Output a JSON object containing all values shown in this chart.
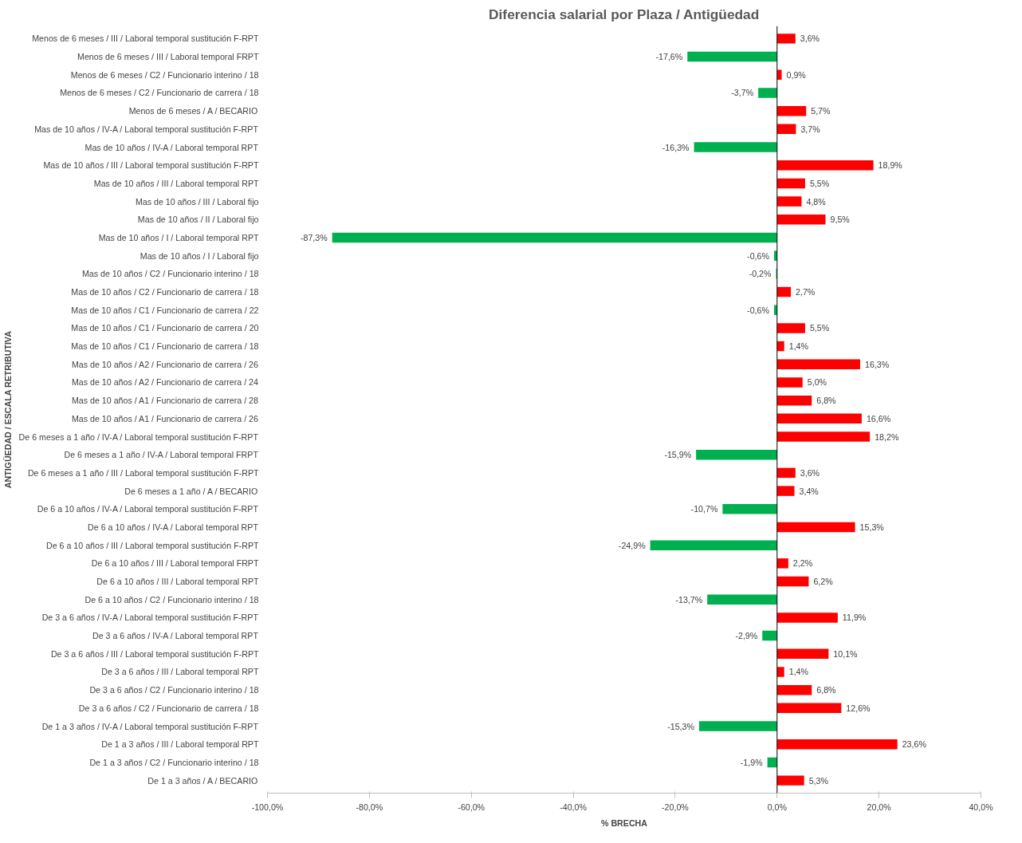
{
  "chart_data": {
    "type": "bar",
    "title": "Diferencia salarial por Plaza / Antigüedad",
    "xlabel": "% BRECHA",
    "ylabel": "ANTIGÜEDAD / ESCALA RETRIBUTIVA",
    "categories": [
      "Menos de 6 meses / III / Laboral temporal sustitución F-RPT",
      "Menos de 6 meses / III / Laboral temporal FRPT",
      "Menos de 6 meses / C2 / Funcionario interino / 18",
      "Menos de 6 meses / C2 / Funcionario de carrera / 18",
      "Menos de 6 meses / A / BECARIO",
      "Mas de 10 años / IV-A / Laboral temporal sustitución F-RPT",
      "Mas de 10 años / IV-A / Laboral temporal RPT",
      "Mas de 10 años / III / Laboral temporal sustitución F-RPT",
      "Mas de 10 años / III / Laboral temporal RPT",
      "Mas de 10 años / III / Laboral fijo",
      "Mas de 10 años / II / Laboral fijo",
      "Mas de 10 años / I / Laboral temporal RPT",
      "Mas de 10 años / I / Laboral fijo",
      "Mas de 10 años / C2 / Funcionario interino / 18",
      "Mas de 10 años / C2 / Funcionario de carrera / 18",
      "Mas de 10 años / C1 / Funcionario de carrera / 22",
      "Mas de 10 años / C1 / Funcionario de carrera / 20",
      "Mas de 10 años / C1 / Funcionario de carrera / 18",
      "Mas de 10 años / A2 / Funcionario de carrera / 26",
      "Mas de 10 años / A2 / Funcionario de carrera / 24",
      "Mas de 10 años / A1 / Funcionario de carrera / 28",
      "Mas de 10 años / A1 / Funcionario de carrera / 26",
      "De 6 meses a 1 año / IV-A / Laboral temporal sustitución F-RPT",
      "De 6 meses a 1 año / IV-A / Laboral temporal FRPT",
      "De 6 meses a 1 año / III / Laboral temporal sustitución F-RPT",
      "De 6 meses a 1 año / A / BECARIO",
      "De 6 a 10 años / IV-A / Laboral temporal sustitución F-RPT",
      "De 6 a 10 años / IV-A / Laboral temporal RPT",
      "De 6 a 10 años / III / Laboral temporal sustitución F-RPT",
      "De 6 a 10 años / III / Laboral temporal FRPT",
      "De 6 a 10 años / III / Laboral temporal RPT",
      "De 6 a 10 años / C2 / Funcionario interino / 18",
      "De 3 a 6 años / IV-A / Laboral temporal sustitución F-RPT",
      "De 3 a 6 años / IV-A / Laboral temporal RPT",
      "De 3 a 6 años / III / Laboral temporal sustitución F-RPT",
      "De 3 a 6 años / III / Laboral temporal RPT",
      "De 3 a 6 años / C2 / Funcionario interino / 18",
      "De 3 a 6 años / C2 / Funcionario de carrera / 18",
      "De 1 a 3 años / IV-A / Laboral temporal sustitución F-RPT",
      "De 1 a 3 años / III / Laboral temporal RPT",
      "De 1 a 3 años / C2 / Funcionario interino / 18",
      "De 1 a 3 años / A / BECARIO"
    ],
    "values": [
      3.6,
      -17.6,
      0.9,
      -3.7,
      5.7,
      3.7,
      -16.3,
      18.9,
      5.5,
      4.8,
      9.5,
      -87.3,
      -0.6,
      -0.2,
      2.7,
      -0.6,
      5.5,
      1.4,
      16.3,
      5.0,
      6.8,
      16.6,
      18.2,
      -15.9,
      3.6,
      3.4,
      -10.7,
      15.3,
      -24.9,
      2.2,
      6.2,
      -13.7,
      11.9,
      -2.9,
      10.1,
      1.4,
      6.8,
      12.6,
      -15.3,
      23.6,
      -1.9,
      5.3
    ],
    "value_labels": [
      "3,6%",
      "-17,6%",
      "0,9%",
      "-3,7%",
      "5,7%",
      "3,7%",
      "-16,3%",
      "18,9%",
      "5,5%",
      "4,8%",
      "9,5%",
      "-87,3%",
      "-0,6%",
      "-0,2%",
      "2,7%",
      "-0,6%",
      "5,5%",
      "1,4%",
      "16,3%",
      "5,0%",
      "6,8%",
      "16,6%",
      "18,2%",
      "-15,9%",
      "3,6%",
      "3,4%",
      "-10,7%",
      "15,3%",
      "-24,9%",
      "2,2%",
      "6,2%",
      "-13,7%",
      "11,9%",
      "-2,9%",
      "10,1%",
      "1,4%",
      "6,8%",
      "12,6%",
      "-15,3%",
      "23,6%",
      "-1,9%",
      "5,3%"
    ],
    "colors": [
      "#ff0000",
      "#00b050",
      "#ff0000",
      "#00b050",
      "#ff0000",
      "#ff0000",
      "#00b050",
      "#ff0000",
      "#ff0000",
      "#ff0000",
      "#ff0000",
      "#00b050",
      "#00b050",
      "#00b050",
      "#ff0000",
      "#00b050",
      "#ff0000",
      "#ff0000",
      "#ff0000",
      "#ff0000",
      "#ff0000",
      "#ff0000",
      "#ff0000",
      "#00b050",
      "#ff0000",
      "#ff0000",
      "#00b050",
      "#ff0000",
      "#00b050",
      "#ff0000",
      "#ff0000",
      "#00b050",
      "#ff0000",
      "#00b050",
      "#ff0000",
      "#ff0000",
      "#ff0000",
      "#ff0000",
      "#00b050",
      "#ff0000",
      "#00b050",
      "#ff0000"
    ],
    "xlim": [
      -100,
      40
    ],
    "xticks": [
      {
        "value": -100,
        "label": "-100,0%"
      },
      {
        "value": -80,
        "label": "-80,0%"
      },
      {
        "value": -60,
        "label": "-60,0%"
      },
      {
        "value": -40,
        "label": "-40,0%"
      },
      {
        "value": -20,
        "label": "-20,0%"
      },
      {
        "value": 0,
        "label": "0,0%"
      },
      {
        "value": 20,
        "label": "20,0%"
      },
      {
        "value": 40,
        "label": "40,0%"
      }
    ],
    "orientation": "horizontal"
  }
}
